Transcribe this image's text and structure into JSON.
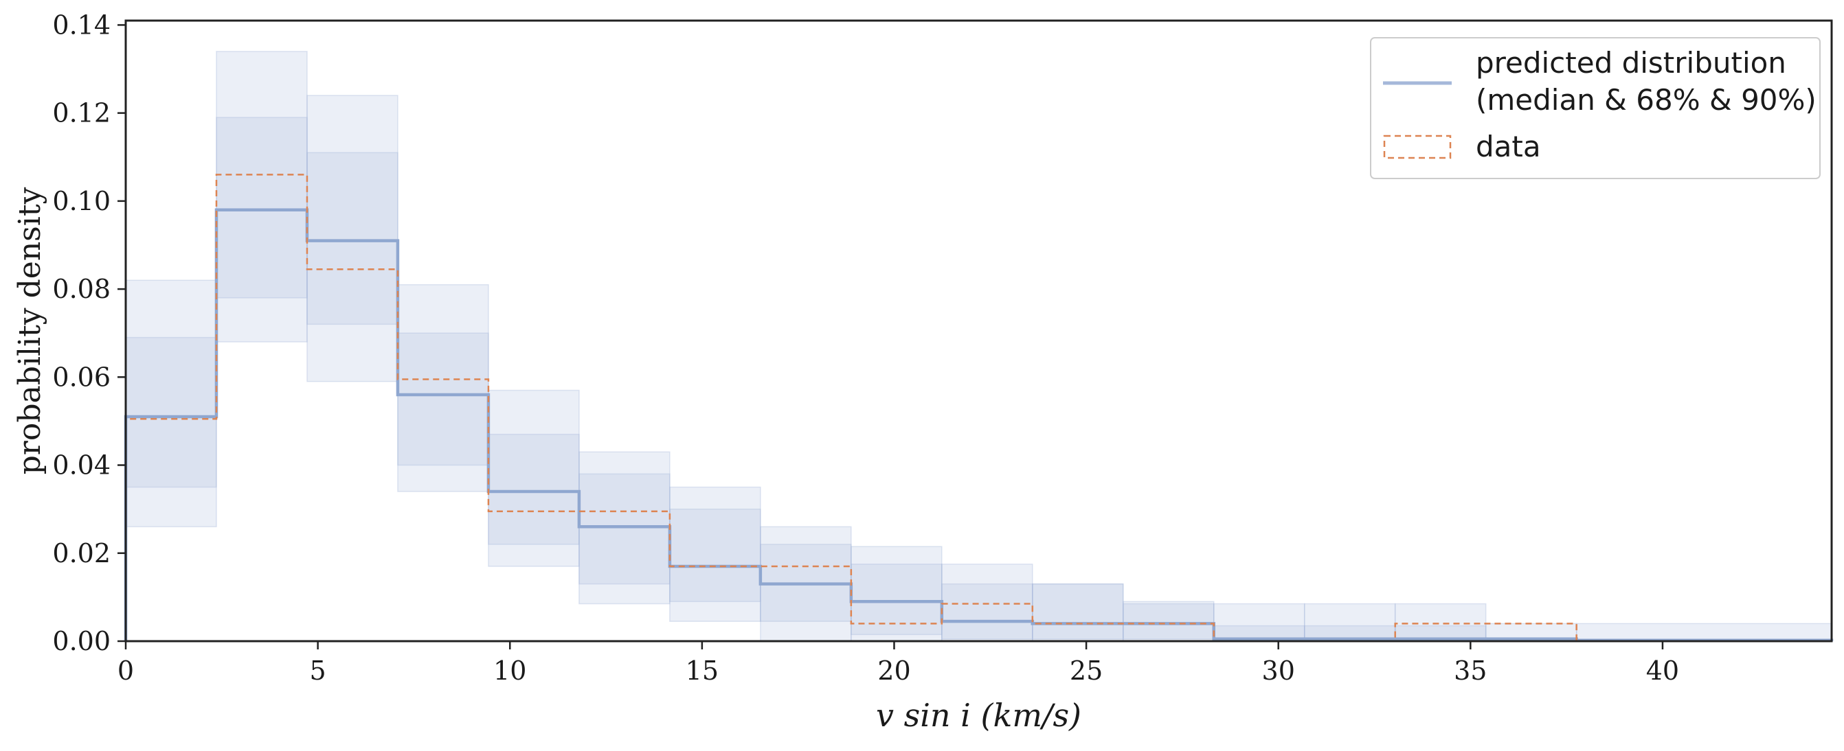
{
  "chart_data": {
    "type": "bar",
    "xlabel": "v sin i (km/s)",
    "ylabel": "probability density",
    "xlim": [
      0,
      44.4
    ],
    "ylim": [
      0,
      0.141
    ],
    "x_ticks": [
      0,
      5,
      10,
      15,
      20,
      25,
      30,
      35,
      40
    ],
    "x_tick_labels": [
      "0",
      "5",
      "10",
      "15",
      "20",
      "25",
      "30",
      "35",
      "40"
    ],
    "y_ticks": [
      0,
      0.02,
      0.04,
      0.06,
      0.08,
      0.1,
      0.12,
      0.14
    ],
    "y_tick_labels": [
      "0.00",
      "0.02",
      "0.04",
      "0.06",
      "0.08",
      "0.10",
      "0.12",
      "0.14"
    ],
    "grid": false,
    "legend_position": "top-right",
    "legend": {
      "predicted_label_line1": "predicted distribution",
      "predicted_label_line2": "(median & 68% & 90%)",
      "data_label": "data"
    },
    "bin_edges": [
      0,
      2.36,
      4.72,
      7.08,
      9.44,
      11.8,
      14.16,
      16.52,
      18.88,
      21.24,
      23.6,
      25.96,
      28.32,
      30.68,
      33.04,
      35.4,
      37.76,
      44.4
    ],
    "series": [
      {
        "name": "predicted distribution (median & 68% & 90%)",
        "color": "#a5b8da",
        "median": [
          0.051,
          0.098,
          0.091,
          0.056,
          0.034,
          0.026,
          0.017,
          0.013,
          0.009,
          0.0045,
          0.004,
          0.004,
          0.0005,
          0.0005,
          0.0005,
          0.0005,
          0.0002
        ],
        "band68_low": [
          0.035,
          0.078,
          0.072,
          0.04,
          0.022,
          0.013,
          0.009,
          0.0045,
          0.0015,
          0.0005,
          0.0005,
          0.0005,
          0.0,
          0.0,
          0.0,
          0.0,
          0.0
        ],
        "band68_high": [
          0.069,
          0.119,
          0.111,
          0.07,
          0.047,
          0.038,
          0.03,
          0.022,
          0.0175,
          0.013,
          0.013,
          0.0085,
          0.0035,
          0.0035,
          0.0035,
          0.0,
          0.0
        ],
        "band90_low": [
          0.026,
          0.068,
          0.059,
          0.034,
          0.017,
          0.0085,
          0.0045,
          0.0,
          0.0,
          0.0,
          0.0,
          0.0,
          0.0,
          0.0,
          0.0,
          0.0,
          0.0
        ],
        "band90_high": [
          0.082,
          0.134,
          0.124,
          0.081,
          0.057,
          0.043,
          0.035,
          0.026,
          0.0215,
          0.0175,
          0.013,
          0.009,
          0.0085,
          0.0085,
          0.0085,
          0.004,
          0.004
        ]
      },
      {
        "name": "data",
        "color": "#dd8452",
        "values": [
          0.0505,
          0.106,
          0.0845,
          0.0595,
          0.0295,
          0.0295,
          0.017,
          0.017,
          0.004,
          0.0085,
          0.004,
          0.004,
          0.0,
          0.0,
          0.004,
          0.004,
          0.0
        ]
      }
    ]
  }
}
